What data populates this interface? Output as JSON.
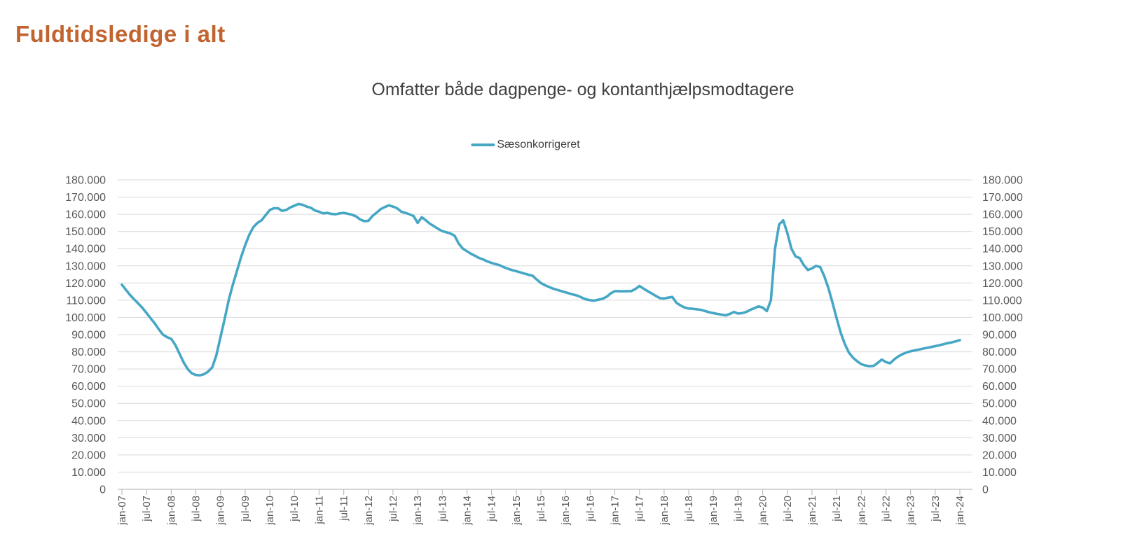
{
  "header": {
    "title": "Fuldtidsledige i alt"
  },
  "chart": {
    "subtitle": "Omfatter både dagpenge- og kontanthjælpsmodtagere",
    "legend_label": "Sæsonkorrigeret"
  },
  "colors": {
    "title": "#C2642F",
    "series": "#46A7C5",
    "subtitle_text": "#404040",
    "axis_text": "#595959",
    "gridline": "#D9D9D9",
    "axis_line": "#BFBFBF"
  },
  "chart_data": {
    "type": "line",
    "title": "Omfatter både dagpenge- og kontanthjælpsmodtagere",
    "x_unit": "month",
    "x_start": "jan-07",
    "x_end": "jan-24",
    "ylim": [
      0,
      180000
    ],
    "y_tick_step": 10000,
    "grid": "horizontal",
    "legend_position": "top-center",
    "axes": {
      "y_left": true,
      "y_right": true
    },
    "y_tick_labels": [
      "0",
      "10.000",
      "20.000",
      "30.000",
      "40.000",
      "50.000",
      "60.000",
      "70.000",
      "80.000",
      "90.000",
      "100.000",
      "110.000",
      "120.000",
      "130.000",
      "140.000",
      "150.000",
      "160.000",
      "170.000",
      "180.000"
    ],
    "x_tick_labels": [
      "jan-07",
      "jul-07",
      "jan-08",
      "jul-08",
      "jan-09",
      "jul-09",
      "jan-10",
      "jul-10",
      "jan-11",
      "jul-11",
      "jan-12",
      "jul-12",
      "jan-13",
      "jul-13",
      "jan-14",
      "jul-14",
      "jan-15",
      "jul-15",
      "jan-16",
      "jul-16",
      "jan-17",
      "jul-17",
      "jan-18",
      "jul-18",
      "jan-19",
      "jul-19",
      "jan-20",
      "jul-20",
      "jan-21",
      "jul-21",
      "jan-22",
      "jul-22",
      "jan-23",
      "jul-23",
      "jan-24"
    ],
    "series": [
      {
        "name": "Sæsonkorrigeret",
        "color": "#46A7C5",
        "values": [
          119000,
          116000,
          113000,
          110500,
          108000,
          105500,
          102500,
          99500,
          96500,
          93000,
          90000,
          88500,
          87500,
          84000,
          79000,
          74000,
          70000,
          67500,
          66500,
          66300,
          67000,
          68500,
          71000,
          78000,
          88500,
          99000,
          110000,
          119000,
          127000,
          135000,
          142000,
          148000,
          152500,
          155000,
          156500,
          159500,
          162500,
          163500,
          163500,
          162000,
          162500,
          164000,
          165000,
          166000,
          165500,
          164500,
          163800,
          162200,
          161500,
          160500,
          160800,
          160200,
          160000,
          160500,
          160800,
          160300,
          159700,
          158800,
          157000,
          156000,
          156200,
          159000,
          161000,
          163000,
          164200,
          165200,
          164500,
          163500,
          161500,
          160800,
          160000,
          159000,
          155000,
          158300,
          156500,
          154500,
          153000,
          151500,
          150200,
          149500,
          148800,
          147500,
          143000,
          140000,
          138500,
          137000,
          135800,
          134500,
          133700,
          132500,
          131700,
          131000,
          130300,
          129200,
          128300,
          127500,
          126900,
          126200,
          125500,
          124800,
          124200,
          122000,
          120000,
          118700,
          117700,
          116700,
          116000,
          115300,
          114600,
          113900,
          113200,
          112600,
          111500,
          110500,
          110000,
          109800,
          110300,
          110800,
          112000,
          114000,
          115300,
          115300,
          115200,
          115300,
          115300,
          116500,
          118300,
          116700,
          115300,
          113900,
          112500,
          111200,
          111000,
          111500,
          111900,
          108500,
          107000,
          105700,
          105200,
          105000,
          104700,
          104400,
          103700,
          103000,
          102500,
          102000,
          101600,
          101200,
          102000,
          103200,
          102200,
          102500,
          103200,
          104400,
          105400,
          106400,
          105700,
          103700,
          110000,
          140000,
          154000,
          156500,
          149000,
          140000,
          135500,
          134500,
          130500,
          127600,
          128500,
          130000,
          129300,
          124000,
          117000,
          108500,
          99500,
          91000,
          84500,
          79500,
          76500,
          74500,
          72800,
          72000,
          71600,
          71800,
          73500,
          75500,
          74000,
          73300,
          75500,
          77300,
          78600,
          79600,
          80300,
          80800,
          81300,
          81800,
          82300,
          82800,
          83300,
          83800,
          84400,
          85000,
          85500,
          86100,
          86800
        ]
      }
    ]
  }
}
